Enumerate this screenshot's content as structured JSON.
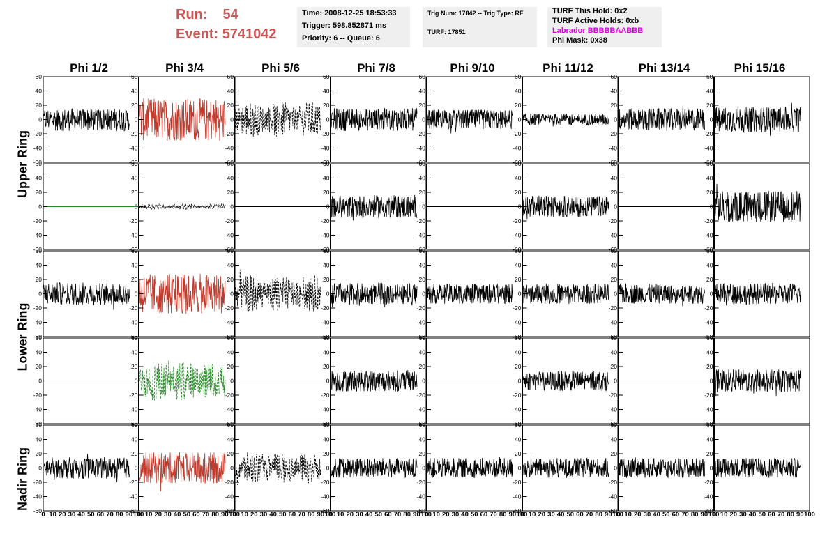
{
  "run": {
    "run_label": "Run:",
    "run_value": "54",
    "event_label": "Event:",
    "event_value": "5741042"
  },
  "info1": {
    "time": "Time: 2008-12-25 18:53:33",
    "trigger": "Trigger: 598.852871 ms",
    "priority": "Priority: 6 -- Queue: 6"
  },
  "info2": {
    "trig": "Trig Num: 17842 -- Trig Type: RF",
    "turf": "TURF: 17851"
  },
  "info3": {
    "hold": "TURF This Hold: 0x2",
    "active": "TURF Active Holds: 0xb",
    "labrador": "Labrador BBBBBAABBB",
    "phimask": "Phi Mask: 0x38"
  },
  "columns": [
    "Phi 1/2",
    "Phi 3/4",
    "Phi 5/6",
    "Phi 7/8",
    "Phi 9/10",
    "Phi 11/12",
    "Phi 13/14",
    "Phi 15/16"
  ],
  "rows": [
    "Upper Ring",
    "Lower Ring",
    "Nadir Ring"
  ],
  "y_ticks": [
    "60",
    "40",
    "20",
    "0",
    "-20",
    "-40",
    "-60"
  ],
  "x_ticks": [
    "0",
    "10",
    "20",
    "30",
    "40",
    "50",
    "60",
    "70",
    "80",
    "90",
    "100"
  ],
  "colors": {
    "red": "#c0392b",
    "green": "#228822",
    "black": "#000000",
    "magenta": "#dd00dd",
    "title": "#cc5555"
  },
  "chart_data": {
    "type": "line",
    "xlim": [
      0,
      100
    ],
    "ylim": [
      -60,
      60
    ],
    "panels": [
      {
        "row": 0,
        "col": 0,
        "style": "solid",
        "color": "black",
        "amp": 16
      },
      {
        "row": 0,
        "col": 1,
        "style": "solid",
        "color": "red",
        "amp": 30
      },
      {
        "row": 0,
        "col": 2,
        "style": "dashed",
        "color": "black",
        "amp": 25
      },
      {
        "row": 0,
        "col": 3,
        "style": "solid",
        "color": "black",
        "amp": 16
      },
      {
        "row": 0,
        "col": 4,
        "style": "solid",
        "color": "black",
        "amp": 14
      },
      {
        "row": 0,
        "col": 5,
        "style": "solid",
        "color": "black",
        "amp": 8
      },
      {
        "row": 0,
        "col": 6,
        "style": "solid",
        "color": "black",
        "amp": 16
      },
      {
        "row": 0,
        "col": 7,
        "style": "solid",
        "color": "black",
        "amp": 18
      },
      {
        "row": 1,
        "col": 0,
        "style": "flat",
        "color": "green",
        "amp": 0
      },
      {
        "row": 1,
        "col": 1,
        "style": "dashed",
        "color": "black",
        "amp": 4
      },
      {
        "row": 1,
        "col": 2,
        "style": "flat",
        "color": "black",
        "amp": 0
      },
      {
        "row": 1,
        "col": 3,
        "style": "solid",
        "color": "black",
        "amp": 16
      },
      {
        "row": 1,
        "col": 4,
        "style": "flat",
        "color": "black",
        "amp": 0
      },
      {
        "row": 1,
        "col": 5,
        "style": "solid",
        "color": "black",
        "amp": 15
      },
      {
        "row": 1,
        "col": 6,
        "style": "flat",
        "color": "black",
        "amp": 0
      },
      {
        "row": 1,
        "col": 7,
        "style": "solid",
        "color": "black",
        "amp": 22
      },
      {
        "row": 2,
        "col": 0,
        "style": "solid",
        "color": "black",
        "amp": 16
      },
      {
        "row": 2,
        "col": 1,
        "style": "solid",
        "color": "red",
        "amp": 28
      },
      {
        "row": 2,
        "col": 2,
        "style": "dashed",
        "color": "black",
        "amp": 26
      },
      {
        "row": 2,
        "col": 3,
        "style": "solid",
        "color": "black",
        "amp": 15
      },
      {
        "row": 2,
        "col": 4,
        "style": "solid",
        "color": "black",
        "amp": 14
      },
      {
        "row": 2,
        "col": 5,
        "style": "solid",
        "color": "black",
        "amp": 14
      },
      {
        "row": 2,
        "col": 6,
        "style": "solid",
        "color": "black",
        "amp": 14
      },
      {
        "row": 2,
        "col": 7,
        "style": "solid",
        "color": "black",
        "amp": 15
      },
      {
        "row": 3,
        "col": 0,
        "style": "flat",
        "color": "black",
        "amp": 0
      },
      {
        "row": 3,
        "col": 1,
        "style": "dashed",
        "color": "green",
        "amp": 28
      },
      {
        "row": 3,
        "col": 2,
        "style": "flat",
        "color": "black",
        "amp": 0
      },
      {
        "row": 3,
        "col": 3,
        "style": "solid",
        "color": "black",
        "amp": 15
      },
      {
        "row": 3,
        "col": 4,
        "style": "flat",
        "color": "black",
        "amp": 0
      },
      {
        "row": 3,
        "col": 5,
        "style": "solid",
        "color": "black",
        "amp": 14
      },
      {
        "row": 3,
        "col": 6,
        "style": "flat",
        "color": "black",
        "amp": 0
      },
      {
        "row": 3,
        "col": 7,
        "style": "solid",
        "color": "black",
        "amp": 16
      },
      {
        "row": 4,
        "col": 0,
        "style": "solid",
        "color": "black",
        "amp": 15
      },
      {
        "row": 4,
        "col": 1,
        "style": "solid",
        "color": "red",
        "amp": 22
      },
      {
        "row": 4,
        "col": 2,
        "style": "dashed",
        "color": "black",
        "amp": 22
      },
      {
        "row": 4,
        "col": 3,
        "style": "solid",
        "color": "black",
        "amp": 14
      },
      {
        "row": 4,
        "col": 4,
        "style": "solid",
        "color": "black",
        "amp": 14
      },
      {
        "row": 4,
        "col": 5,
        "style": "solid",
        "color": "black",
        "amp": 14
      },
      {
        "row": 4,
        "col": 6,
        "style": "solid",
        "color": "black",
        "amp": 14
      },
      {
        "row": 4,
        "col": 7,
        "style": "solid",
        "color": "black",
        "amp": 14
      }
    ]
  }
}
